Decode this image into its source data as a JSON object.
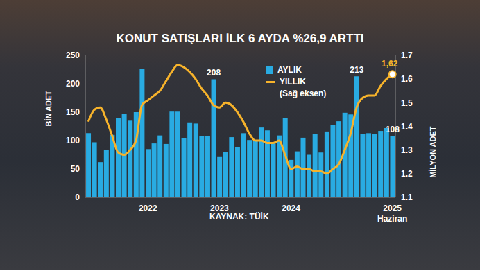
{
  "chart_data": {
    "type": "bar",
    "title": "KONUT SATIŞLARI İLK 6 AYDA %26,9 ARTTI",
    "source": "KAYNAK: TÜİK",
    "legend_note": "(Sağ eksen)",
    "y_label": "BİN ADET",
    "y2_label": "MİLYON ADET",
    "categories": [
      null,
      null,
      null,
      null,
      null,
      null,
      null,
      null,
      null,
      null,
      "2022",
      null,
      null,
      null,
      null,
      null,
      null,
      null,
      null,
      null,
      null,
      null,
      "2023",
      null,
      null,
      null,
      null,
      null,
      null,
      null,
      null,
      null,
      null,
      null,
      "2024",
      null,
      null,
      null,
      null,
      null,
      null,
      null,
      null,
      null,
      null,
      null,
      null,
      null,
      null,
      null,
      null,
      "2025 Haziran"
    ],
    "series": [
      {
        "name": "AYLIK",
        "type": "bar",
        "color": "#29abe2",
        "values": [
          113,
          97,
          62,
          84,
          110,
          140,
          147,
          135,
          150,
          226,
          85,
          95,
          109,
          94,
          151,
          151,
          104,
          132,
          130,
          108,
          108,
          208,
          71,
          80,
          106,
          89,
          113,
          101,
          100,
          123,
          118,
          95,
          109,
          140,
          66,
          81,
          105,
          75,
          111,
          79,
          116,
          127,
          134,
          149,
          146,
          213,
          112,
          113,
          112,
          117,
          122,
          108
        ],
        "value_labels": [
          null,
          null,
          null,
          null,
          null,
          null,
          null,
          null,
          null,
          null,
          null,
          null,
          null,
          null,
          null,
          null,
          null,
          null,
          null,
          null,
          null,
          "208",
          null,
          null,
          null,
          null,
          null,
          null,
          null,
          null,
          null,
          null,
          null,
          null,
          null,
          null,
          null,
          null,
          null,
          null,
          null,
          null,
          null,
          null,
          null,
          "213",
          null,
          null,
          null,
          null,
          null,
          "108"
        ]
      },
      {
        "name": "YILLIK",
        "type": "line",
        "axis": "y2",
        "color": "#f7b32b",
        "values": [
          1.42,
          1.47,
          1.48,
          1.43,
          1.36,
          1.29,
          1.28,
          1.3,
          1.34,
          1.49,
          1.51,
          1.53,
          1.55,
          1.59,
          1.63,
          1.66,
          1.65,
          1.63,
          1.6,
          1.56,
          1.53,
          1.49,
          1.48,
          1.5,
          1.49,
          1.46,
          1.42,
          1.37,
          1.34,
          1.34,
          1.33,
          1.33,
          1.34,
          1.28,
          1.22,
          1.23,
          1.22,
          1.22,
          1.21,
          1.21,
          1.2,
          1.22,
          1.24,
          1.3,
          1.37,
          1.48,
          1.52,
          1.53,
          1.53,
          1.57,
          1.6,
          1.62
        ],
        "value_labels": [
          null,
          null,
          null,
          null,
          null,
          null,
          null,
          null,
          null,
          null,
          null,
          null,
          null,
          null,
          null,
          null,
          null,
          null,
          null,
          null,
          null,
          null,
          null,
          null,
          null,
          null,
          null,
          null,
          null,
          null,
          null,
          null,
          null,
          null,
          null,
          null,
          null,
          null,
          null,
          null,
          null,
          null,
          null,
          null,
          null,
          null,
          null,
          null,
          null,
          null,
          null,
          "1,62"
        ]
      }
    ],
    "ylim": [
      0,
      250
    ],
    "yticks": [
      0,
      50,
      100,
      150,
      200,
      250
    ],
    "y2lim": [
      1.1,
      1.7
    ],
    "y2ticks": [
      1.1,
      1.2,
      1.3,
      1.4,
      1.5,
      1.6,
      1.7
    ],
    "data_labels": true,
    "grid": false
  }
}
